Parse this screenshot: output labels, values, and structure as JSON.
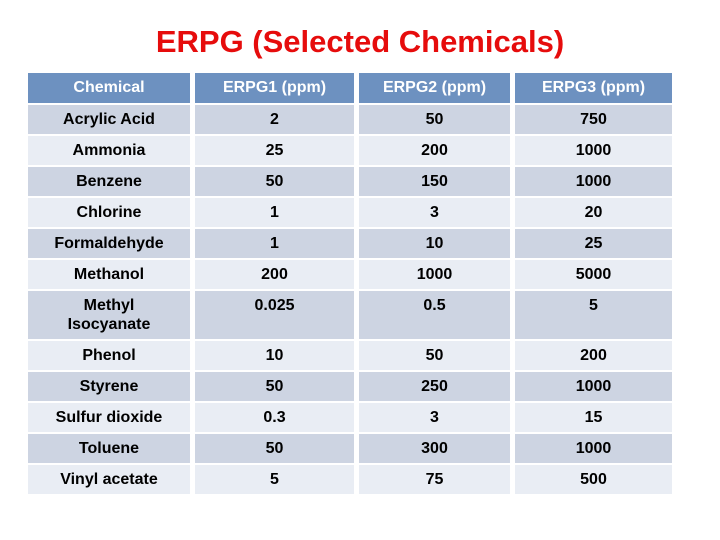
{
  "title": "ERPG (Selected Chemicals)",
  "chart_data": {
    "type": "table",
    "title": "ERPG (Selected Chemicals)",
    "columns": [
      "Chemical",
      "ERPG1 (ppm)",
      "ERPG2 (ppm)",
      "ERPG3 (ppm)"
    ],
    "rows": [
      {
        "chemical": "Acrylic Acid",
        "erpg1": "2",
        "erpg2": "50",
        "erpg3": "750"
      },
      {
        "chemical": "Ammonia",
        "erpg1": "25",
        "erpg2": "200",
        "erpg3": "1000"
      },
      {
        "chemical": "Benzene",
        "erpg1": "50",
        "erpg2": "150",
        "erpg3": "1000"
      },
      {
        "chemical": "Chlorine",
        "erpg1": "1",
        "erpg2": "3",
        "erpg3": "20"
      },
      {
        "chemical": "Formaldehyde",
        "erpg1": "1",
        "erpg2": "10",
        "erpg3": "25"
      },
      {
        "chemical": "Methanol",
        "erpg1": "200",
        "erpg2": "1000",
        "erpg3": "5000"
      },
      {
        "chemical": "Methyl Isocyanate",
        "erpg1": "0.025",
        "erpg2": "0.5",
        "erpg3": "5"
      },
      {
        "chemical": "Phenol",
        "erpg1": "10",
        "erpg2": "50",
        "erpg3": "200"
      },
      {
        "chemical": "Styrene",
        "erpg1": "50",
        "erpg2": "250",
        "erpg3": "1000"
      },
      {
        "chemical": "Sulfur dioxide",
        "erpg1": "0.3",
        "erpg2": "3",
        "erpg3": "15"
      },
      {
        "chemical": "Toluene",
        "erpg1": "50",
        "erpg2": "300",
        "erpg3": "1000"
      },
      {
        "chemical": "Vinyl acetate",
        "erpg1": "5",
        "erpg2": "75",
        "erpg3": "500"
      }
    ]
  },
  "colors": {
    "background": "#ffffff",
    "title_color": "#e60c0c",
    "header_bg": "#6d91c0",
    "header_text": "#ffffff",
    "row_dark": "#cdd4e2",
    "row_light": "#e9edf4",
    "cell_text": "#000000"
  }
}
